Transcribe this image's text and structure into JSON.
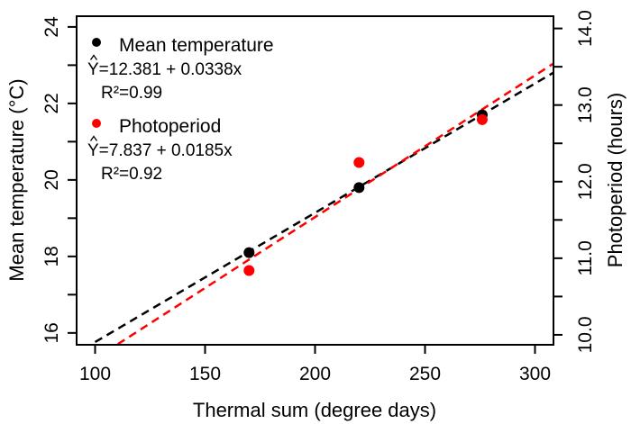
{
  "chart_data": {
    "type": "scatter",
    "xlabel": "Thermal sum (degree days)",
    "ylabel": "Mean temperature (°C)",
    "y2label": "Photoperiod (hours)",
    "xlim": [
      91.6,
      308.4
    ],
    "ylim": [
      15.69,
      24.28
    ],
    "y2lim": [
      9.87,
      14.16
    ],
    "x_ticks": [
      100,
      150,
      200,
      250,
      300
    ],
    "y_ticks": [
      16,
      17,
      18,
      19,
      20,
      21,
      22,
      23,
      24
    ],
    "y_tick_labels": [
      "16",
      "18",
      "20",
      "22",
      "24"
    ],
    "y2_ticks": [
      10.0,
      10.5,
      11.0,
      11.5,
      12.0,
      12.5,
      13.0,
      13.5,
      14.0
    ],
    "y2_tick_labels": [
      "10.0",
      "11.0",
      "12.0",
      "13.0",
      "14.0"
    ],
    "grid": false,
    "legend_placement": "top-left",
    "series": [
      {
        "name": "Mean temperature",
        "axis": "left",
        "color": "#000000",
        "x": [
          170,
          220,
          276
        ],
        "y": [
          18.1,
          19.8,
          21.7
        ],
        "fit": {
          "intercept": 12.381,
          "slope": 0.0338,
          "equation": "Y=12.381 + 0.0338x",
          "r2": "R²=0.99"
        }
      },
      {
        "name": "Photoperiod",
        "axis": "right",
        "color": "#ff0000",
        "x": [
          170,
          220,
          276
        ],
        "y": [
          10.84,
          12.25,
          12.81
        ],
        "fit": {
          "intercept": 7.837,
          "slope": 0.0185,
          "equation": "Y=7.837 + 0.0185x",
          "r2": "R²=0.92"
        }
      }
    ]
  }
}
